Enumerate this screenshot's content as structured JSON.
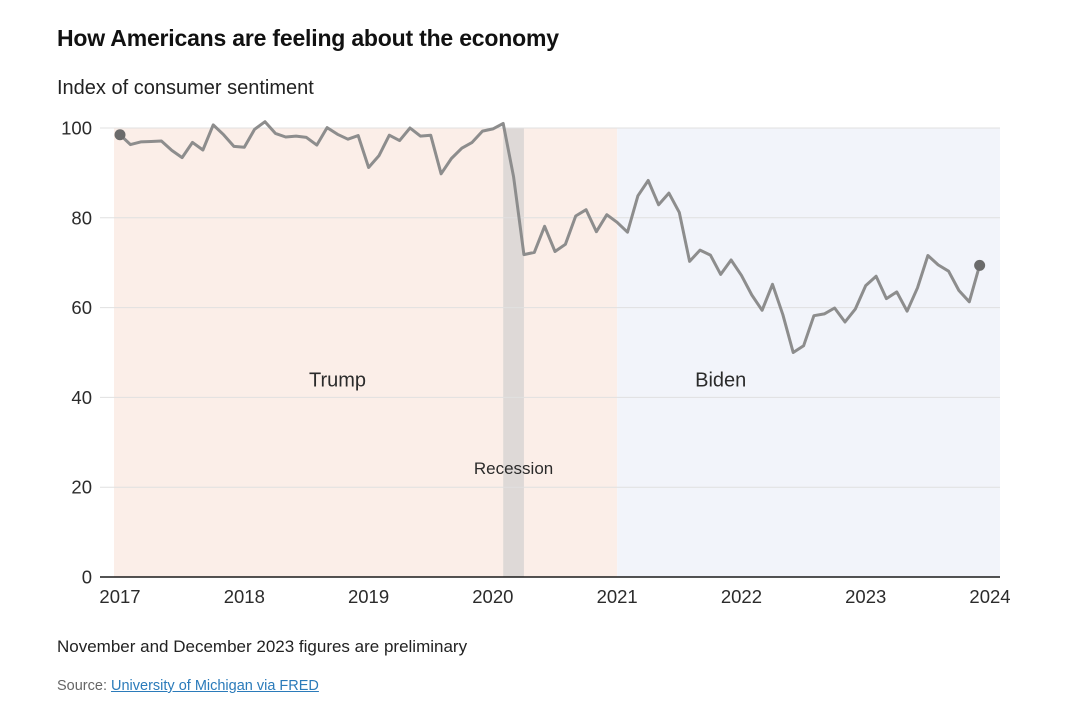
{
  "header": {
    "title": "How Americans are feeling about the economy",
    "subtitle": "Index of consumer sentiment"
  },
  "footer": {
    "note": "November and December 2023 figures are preliminary",
    "source_label": "Source:",
    "source_link": "University of Michigan via FRED"
  },
  "chart_data": {
    "type": "line",
    "title": "How Americans are feeling about the economy",
    "subtitle": "Index of consumer sentiment",
    "x_start": "2017-01",
    "frequency": "monthly",
    "x_axis_end": "2024-01",
    "ylim": [
      0,
      100
    ],
    "y_ticks": [
      0,
      20,
      40,
      60,
      80,
      100
    ],
    "x_ticks": [
      "2017",
      "2018",
      "2019",
      "2020",
      "2021",
      "2022",
      "2023",
      "2024"
    ],
    "grid": true,
    "legend": "none",
    "series": [
      {
        "name": "Index of consumer sentiment",
        "color": "#8d8d8d",
        "values": [
          98.5,
          96.3,
          96.9,
          97.0,
          97.1,
          95.0,
          93.4,
          96.8,
          95.1,
          100.7,
          98.5,
          95.9,
          95.7,
          99.7,
          101.4,
          98.8,
          98.0,
          98.2,
          97.9,
          96.2,
          100.1,
          98.6,
          97.5,
          98.3,
          91.2,
          93.8,
          98.4,
          97.2,
          100.0,
          98.2,
          98.4,
          89.8,
          93.2,
          95.5,
          96.8,
          99.3,
          99.8,
          101.0,
          89.1,
          71.8,
          72.3,
          78.1,
          72.5,
          74.1,
          80.4,
          81.8,
          76.9,
          80.7,
          79.0,
          76.8,
          84.9,
          88.3,
          82.9,
          85.5,
          81.2,
          70.3,
          72.8,
          71.7,
          67.4,
          70.6,
          67.2,
          62.8,
          59.4,
          65.2,
          58.4,
          50.0,
          51.5,
          58.2,
          58.6,
          59.9,
          56.8,
          59.7,
          64.9,
          67.0,
          62.0,
          63.5,
          59.2,
          64.4,
          71.6,
          69.5,
          68.1,
          63.8,
          61.3,
          69.4
        ]
      }
    ],
    "endpoint_markers": {
      "first": 98.5,
      "last": 69.4,
      "color": "#6b6b6b"
    },
    "regions": [
      {
        "label": "Trump",
        "start": "2017-01",
        "end": "2021-01",
        "color": "#fbeee8"
      },
      {
        "label": "Biden",
        "start": "2021-01",
        "end": "2024-01",
        "color": "#f2f4fa"
      }
    ],
    "bands": [
      {
        "label": "Recession",
        "start": "2020-02",
        "end": "2020-04",
        "color": "#ded9d7"
      }
    ],
    "annotations": [
      {
        "text": "Trump",
        "x": "2018-10",
        "y": 44,
        "kind": "president"
      },
      {
        "text": "Biden",
        "x": "2021-11",
        "y": 44,
        "kind": "president"
      },
      {
        "text": "Recession",
        "x": "2020-03",
        "y": 24.5,
        "kind": "band"
      }
    ],
    "colors": {
      "gridline": "#e0e0e0",
      "axis_line": "#1a1a1a",
      "tick_text": "#2b2b2b"
    }
  }
}
